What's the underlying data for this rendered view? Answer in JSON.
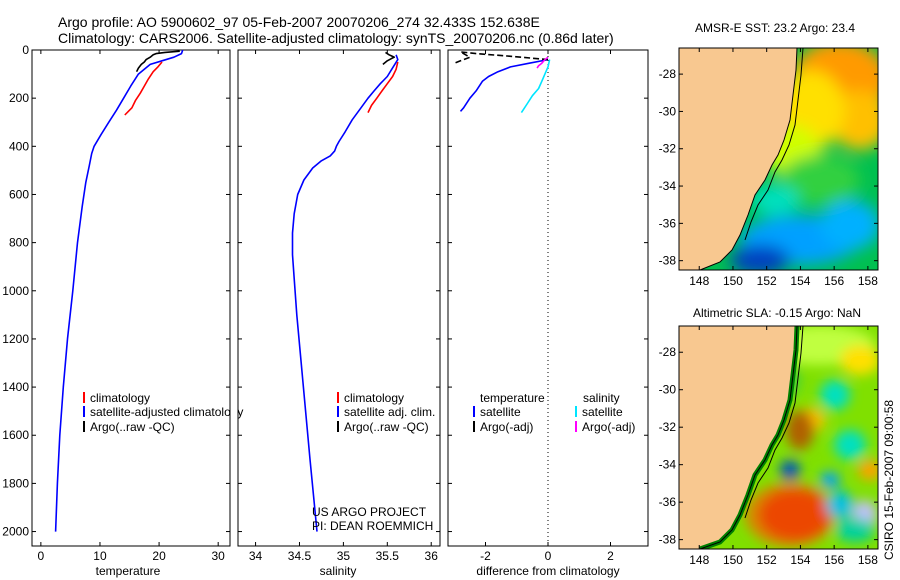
{
  "header": {
    "title_line1": "Argo profile: AO 5900602_97 05-Feb-2007 20070206_274 32.433S 152.638E",
    "title_line2": "Climatology: CARS2006. Satellite-adjusted climatology: synTS_20070206.nc (0.86d later)"
  },
  "side_stamp": "CSIRO 15-Feb-2007 09:00:58",
  "colors": {
    "climatology": "#ff0000",
    "satellite": "#0000ff",
    "argo": "#000000",
    "satellite_salinity": "#00e5ff",
    "argo_salinity": "#ff00ff",
    "land": "#f8c890",
    "axis": "#000000"
  },
  "chart_data": [
    {
      "id": "temperature",
      "type": "line",
      "xlabel": "temperature",
      "ylabel": "",
      "xlim": [
        -1.5,
        32
      ],
      "ylim": [
        2060,
        0
      ],
      "xticks": [
        0,
        10,
        20,
        30
      ],
      "xtick_labels": [
        "0",
        "10",
        "20",
        "30"
      ],
      "yticks": [
        0,
        200,
        400,
        600,
        800,
        1000,
        1200,
        1400,
        1600,
        1800,
        2000
      ],
      "ytick_labels": [
        "0",
        "200",
        "400",
        "600",
        "800",
        "1000",
        "1200",
        "1400",
        "1600",
        "1800",
        "2000"
      ],
      "legend": [
        "climatology",
        "satellite-adjusted climatology",
        "Argo(..raw -QC)"
      ],
      "series": [
        {
          "name": "satellite-adjusted climatology",
          "color_key": "satellite",
          "points": [
            [
              24,
              0
            ],
            [
              23.8,
              15
            ],
            [
              22.5,
              30
            ],
            [
              20.5,
              45
            ],
            [
              18.5,
              60
            ],
            [
              16.5,
              100
            ],
            [
              15.2,
              150
            ],
            [
              14,
              200
            ],
            [
              12.8,
              250
            ],
            [
              11.5,
              300
            ],
            [
              10.2,
              350
            ],
            [
              9,
              400
            ],
            [
              8.6,
              430
            ],
            [
              8.2,
              480
            ],
            [
              7.6,
              550
            ],
            [
              7,
              650
            ],
            [
              6.2,
              800
            ],
            [
              5.4,
              1000
            ],
            [
              4.5,
              1200
            ],
            [
              3.8,
              1400
            ],
            [
              3.2,
              1600
            ],
            [
              2.8,
              1800
            ],
            [
              2.5,
              2000
            ]
          ]
        },
        {
          "name": "climatology",
          "color_key": "climatology",
          "points": [
            [
              20.5,
              50
            ],
            [
              19.8,
              70
            ],
            [
              19,
              90
            ],
            [
              18.2,
              120
            ],
            [
              17.5,
              150
            ],
            [
              16.8,
              180
            ],
            [
              16,
              210
            ],
            [
              15.4,
              240
            ],
            [
              14.2,
              270
            ]
          ]
        },
        {
          "name": "Argo(..raw -QC)",
          "color_key": "argo",
          "points": [
            [
              23.5,
              5
            ],
            [
              21,
              10
            ],
            [
              19.5,
              15
            ],
            [
              19,
              20
            ],
            [
              18.5,
              30
            ],
            [
              17.8,
              40
            ],
            [
              17.5,
              50
            ],
            [
              17,
              60
            ],
            [
              16.5,
              75
            ],
            [
              16.2,
              90
            ]
          ]
        }
      ]
    },
    {
      "id": "salinity",
      "type": "line",
      "xlabel": "salinity",
      "xlim": [
        33.8,
        36.1
      ],
      "ylim": [
        2060,
        0
      ],
      "xticks": [
        34,
        34.5,
        35,
        35.5,
        36
      ],
      "xtick_labels": [
        "34",
        "34.5",
        "35",
        "35.5",
        "36"
      ],
      "legend": [
        "climatology",
        "satellite adj. clim.",
        "Argo(..raw -QC)"
      ],
      "annotation_line1": "US ARGO PROJECT",
      "annotation_line2": "PI: DEAN ROEMMICH",
      "series": [
        {
          "name": "satellite adj. clim.",
          "color_key": "satellite",
          "points": [
            [
              35.6,
              20
            ],
            [
              35.62,
              40
            ],
            [
              35.55,
              80
            ],
            [
              35.5,
              110
            ],
            [
              35.42,
              140
            ],
            [
              35.35,
              170
            ],
            [
              35.28,
              200
            ],
            [
              35.2,
              240
            ],
            [
              35.1,
              290
            ],
            [
              35.02,
              340
            ],
            [
              34.95,
              380
            ],
            [
              34.92,
              400
            ],
            [
              34.9,
              420
            ],
            [
              34.85,
              440
            ],
            [
              34.75,
              460
            ],
            [
              34.65,
              490
            ],
            [
              34.55,
              540
            ],
            [
              34.48,
              600
            ],
            [
              34.44,
              680
            ],
            [
              34.42,
              760
            ],
            [
              34.42,
              850
            ],
            [
              34.44,
              950
            ],
            [
              34.47,
              1100
            ],
            [
              34.52,
              1300
            ],
            [
              34.57,
              1500
            ],
            [
              34.62,
              1700
            ],
            [
              34.66,
              1850
            ],
            [
              34.7,
              2000
            ]
          ]
        },
        {
          "name": "climatology",
          "color_key": "climatology",
          "points": [
            [
              35.62,
              50
            ],
            [
              35.6,
              80
            ],
            [
              35.56,
              110
            ],
            [
              35.5,
              140
            ],
            [
              35.44,
              170
            ],
            [
              35.38,
              200
            ],
            [
              35.32,
              230
            ],
            [
              35.28,
              260
            ]
          ]
        },
        {
          "name": "Argo(..raw -QC)",
          "color_key": "argo",
          "points": [
            [
              35.45,
              60
            ],
            [
              35.5,
              45
            ],
            [
              35.55,
              35
            ],
            [
              35.58,
              30
            ],
            [
              35.55,
              25
            ],
            [
              35.52,
              20
            ],
            [
              35.48,
              10
            ]
          ]
        }
      ]
    },
    {
      "id": "difference",
      "type": "line",
      "xlabel": "difference from climatology",
      "xlim": [
        -3.2,
        3.2
      ],
      "ylim": [
        2060,
        0
      ],
      "xticks": [
        -2,
        0,
        2
      ],
      "xtick_labels": [
        "-2",
        "0",
        "2"
      ],
      "legend_temperature_header": "temperature",
      "legend_salinity_header": "salinity",
      "legend": [
        "satellite",
        "Argo(-adj)",
        "satellite",
        "Argo(-adj)"
      ],
      "series": [
        {
          "name": "temperature satellite",
          "color_key": "satellite",
          "points": [
            [
              0,
              40
            ],
            [
              -0.6,
              55
            ],
            [
              -1.2,
              70
            ],
            [
              -1.6,
              90
            ],
            [
              -1.9,
              110
            ],
            [
              -2.1,
              130
            ],
            [
              -2.3,
              170
            ],
            [
              -2.5,
              200
            ],
            [
              -2.7,
              240
            ],
            [
              -2.8,
              255
            ]
          ]
        },
        {
          "name": "salinity satellite",
          "color_key": "satellite_salinity",
          "points": [
            [
              0.05,
              40
            ],
            [
              0,
              70
            ],
            [
              -0.1,
              100
            ],
            [
              -0.2,
              130
            ],
            [
              -0.3,
              160
            ],
            [
              -0.5,
              190
            ],
            [
              -0.65,
              220
            ],
            [
              -0.8,
              250
            ],
            [
              -0.85,
              260
            ]
          ]
        },
        {
          "name": "temperature Argo(-adj)",
          "color_key": "argo",
          "points": [
            [
              0,
              40
            ],
            [
              -1.3,
              25
            ],
            [
              -2.3,
              15
            ],
            [
              -2.8,
              8
            ],
            [
              -2.5,
              30
            ],
            [
              -2.8,
              45
            ],
            [
              -3.0,
              55
            ]
          ]
        },
        {
          "name": "salinity Argo(-adj)",
          "color_key": "argo_salinity",
          "points": [
            [
              0,
              30
            ],
            [
              -0.1,
              40
            ],
            [
              -0.2,
              55
            ],
            [
              -0.3,
              65
            ],
            [
              -0.35,
              75
            ]
          ]
        }
      ]
    }
  ],
  "maps": [
    {
      "id": "sst",
      "title": "AMSR-E SST: 23.2 Argo: 23.4",
      "lon_range": [
        146.8,
        158.6
      ],
      "lat_range": [
        -38.5,
        -26.6
      ],
      "lon_ticks": [
        148,
        150,
        152,
        154,
        156,
        158
      ],
      "lon_tick_labels": [
        "148",
        "150",
        "152",
        "154",
        "156",
        "158"
      ],
      "lat_ticks": [
        -28,
        -30,
        -32,
        -34,
        -36,
        -38
      ],
      "lat_tick_labels": [
        "-28",
        "-30",
        "-32",
        "-34",
        "-36",
        "-38"
      ]
    },
    {
      "id": "sla",
      "title": "Altimetric SLA: -0.15 Argo: NaN",
      "lon_range": [
        146.8,
        158.6
      ],
      "lat_range": [
        -38.5,
        -26.6
      ],
      "lon_ticks": [
        148,
        150,
        152,
        154,
        156,
        158
      ],
      "lon_tick_labels": [
        "148",
        "150",
        "152",
        "154",
        "156",
        "158"
      ],
      "lat_ticks": [
        -28,
        -30,
        -32,
        -34,
        -36,
        -38
      ],
      "lat_tick_labels": [
        "-28",
        "-30",
        "-32",
        "-34",
        "-36",
        "-38"
      ]
    }
  ]
}
